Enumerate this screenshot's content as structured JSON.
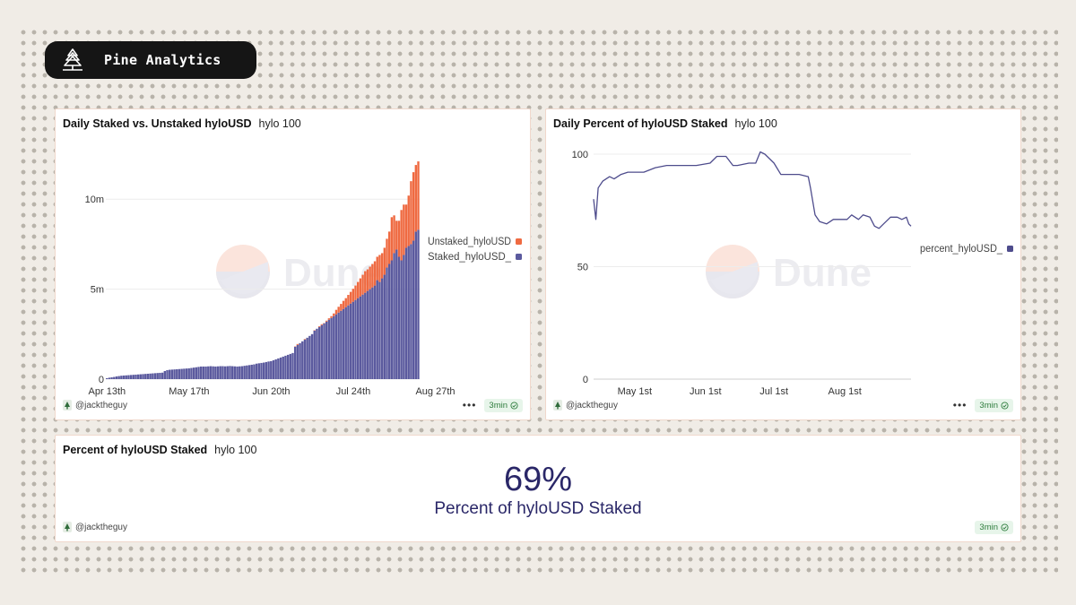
{
  "brand": {
    "name": "Pine Analytics",
    "logo_icon": "pine-tree-icon"
  },
  "watermark": "Dune",
  "colors": {
    "staked": "#5b5a9e",
    "unstaked": "#ef6a41",
    "line": "#4e4c8c",
    "counter": "#2a2768"
  },
  "panels": [
    {
      "title": "Daily Staked vs. Unstaked hyloUSD",
      "query": "hylo 100",
      "author": "@jacktheguy",
      "refresh": "3min"
    },
    {
      "title": "Daily Percent of hyloUSD Staked",
      "query": "hylo 100",
      "author": "@jacktheguy",
      "refresh": "3min"
    },
    {
      "title": "Percent of hyloUSD Staked",
      "query": "hylo 100",
      "author": "@jacktheguy",
      "refresh": "3min"
    }
  ],
  "counter": {
    "value": "69%",
    "label": "Percent of hyloUSD Staked"
  },
  "chart_data": [
    {
      "type": "bar",
      "stacked": true,
      "xlabel": "",
      "ylabel": "",
      "ylim": [
        0,
        13000000
      ],
      "yticks": [
        0,
        5000000,
        10000000
      ],
      "ytick_labels": [
        "0",
        "5m",
        "10m"
      ],
      "x_start": "2025-04-13",
      "xtick_labels": [
        "Apr 13th",
        "May 17th",
        "Jun 20th",
        "Jul 24th",
        "Aug 27th"
      ],
      "legend_position": "right",
      "series": [
        {
          "name": "Unstaked_hyloUSD",
          "color": "#ef6a41",
          "values": [
            0,
            0,
            0,
            0,
            0,
            0,
            0,
            0,
            0,
            0,
            0,
            0,
            0,
            0,
            0,
            0,
            0,
            0,
            0,
            0,
            0,
            0,
            0,
            0,
            0,
            0,
            0,
            0,
            0,
            0,
            0,
            0,
            0,
            0,
            0,
            0,
            0,
            0,
            0,
            0,
            0,
            0,
            0,
            0,
            0,
            0,
            0,
            0,
            0,
            0,
            0,
            0,
            0,
            0,
            0,
            0,
            0,
            0,
            0,
            0,
            0,
            0,
            0,
            0,
            0,
            0,
            0,
            0,
            0,
            0,
            0,
            0,
            0,
            0,
            0,
            0,
            0,
            0,
            20000,
            50000,
            0,
            0,
            30000,
            0,
            0,
            0,
            20000,
            0,
            40000,
            50000,
            20000,
            50000,
            80000,
            100000,
            150000,
            250000,
            320000,
            380000,
            450000,
            500000,
            580000,
            650000,
            720000,
            800000,
            900000,
            1000000,
            1100000,
            1200000,
            1200000,
            1250000,
            1300000,
            1350000,
            1300000,
            1500000,
            1400000,
            1500000,
            1600000,
            1800000,
            2400000,
            2100000,
            1600000,
            2000000,
            2800000,
            2800000,
            2400000,
            2800000,
            3500000,
            3800000,
            3700000,
            3800000
          ]
        },
        {
          "name": "Staked_hyloUSD_",
          "color": "#5b5a9e",
          "values": [
            50000,
            80000,
            100000,
            120000,
            150000,
            170000,
            190000,
            200000,
            210000,
            220000,
            230000,
            240000,
            250000,
            260000,
            270000,
            280000,
            290000,
            300000,
            310000,
            320000,
            330000,
            340000,
            350000,
            360000,
            450000,
            500000,
            520000,
            530000,
            540000,
            550000,
            560000,
            570000,
            580000,
            590000,
            600000,
            620000,
            640000,
            660000,
            680000,
            700000,
            700000,
            700000,
            710000,
            720000,
            710000,
            700000,
            710000,
            720000,
            720000,
            710000,
            720000,
            730000,
            720000,
            710000,
            700000,
            710000,
            720000,
            740000,
            760000,
            780000,
            800000,
            820000,
            860000,
            880000,
            900000,
            920000,
            950000,
            980000,
            1000000,
            1050000,
            1100000,
            1150000,
            1200000,
            1250000,
            1300000,
            1350000,
            1400000,
            1450000,
            1800000,
            1900000,
            2000000,
            2100000,
            2200000,
            2300000,
            2400000,
            2500000,
            2700000,
            2800000,
            2900000,
            3000000,
            3100000,
            3200000,
            3300000,
            3400000,
            3500000,
            3600000,
            3700000,
            3800000,
            3900000,
            4000000,
            4100000,
            4200000,
            4300000,
            4400000,
            4500000,
            4600000,
            4700000,
            4800000,
            4900000,
            5000000,
            5100000,
            5200000,
            5500000,
            5400000,
            5600000,
            5800000,
            6200000,
            6400000,
            6600000,
            7000000,
            7200000,
            6800000,
            6600000,
            6900000,
            7300000,
            7400000,
            7500000,
            7700000,
            8200000,
            8300000,
            8400000,
            8500000
          ]
        }
      ]
    },
    {
      "type": "line",
      "xlabel": "",
      "ylabel": "",
      "ylim": [
        0,
        100
      ],
      "yticks": [
        0,
        50,
        100
      ],
      "xlim": [
        "2025-04-13",
        "2025-08-30"
      ],
      "xtick_labels": [
        "May 1st",
        "Jun 1st",
        "Jul 1st",
        "Aug 1st"
      ],
      "xtick_dates": [
        "2025-05-01",
        "2025-06-01",
        "2025-07-01",
        "2025-08-01"
      ],
      "legend_position": "right",
      "series": [
        {
          "name": "percent_hyloUSD_",
          "color": "#4e4c8c",
          "x": [
            "2025-04-13",
            "2025-04-14",
            "2025-04-15",
            "2025-04-17",
            "2025-04-20",
            "2025-04-22",
            "2025-04-25",
            "2025-04-28",
            "2025-05-01",
            "2025-05-05",
            "2025-05-10",
            "2025-05-15",
            "2025-05-17",
            "2025-05-22",
            "2025-05-28",
            "2025-06-03",
            "2025-06-06",
            "2025-06-08",
            "2025-06-10",
            "2025-06-13",
            "2025-06-15",
            "2025-06-20",
            "2025-06-23",
            "2025-06-25",
            "2025-06-27",
            "2025-07-01",
            "2025-07-04",
            "2025-07-08",
            "2025-07-12",
            "2025-07-16",
            "2025-07-17",
            "2025-07-19",
            "2025-07-21",
            "2025-07-24",
            "2025-07-27",
            "2025-07-30",
            "2025-08-02",
            "2025-08-04",
            "2025-08-07",
            "2025-08-09",
            "2025-08-12",
            "2025-08-14",
            "2025-08-16",
            "2025-08-18",
            "2025-08-21",
            "2025-08-24",
            "2025-08-26",
            "2025-08-28",
            "2025-08-29",
            "2025-08-30"
          ],
          "y": [
            80,
            71,
            85,
            88,
            90,
            89,
            91,
            92,
            92,
            92,
            94,
            95,
            95,
            95,
            95,
            96,
            99,
            99,
            99,
            95,
            95,
            96,
            96,
            101,
            100,
            96,
            91,
            91,
            91,
            90,
            85,
            73,
            70,
            69,
            71,
            71,
            71,
            73,
            71,
            73,
            72,
            68,
            67,
            69,
            72,
            72,
            71,
            72,
            69,
            68
          ]
        }
      ]
    }
  ]
}
